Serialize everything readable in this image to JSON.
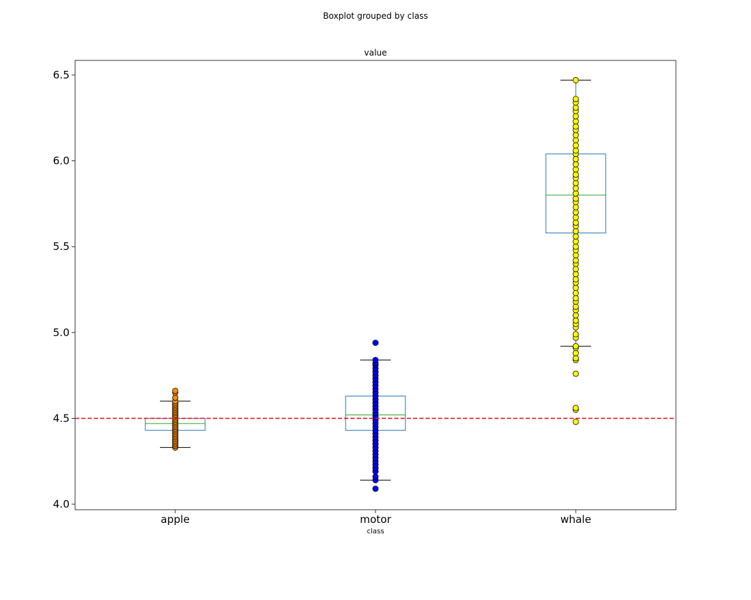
{
  "chart_data": {
    "type": "box",
    "title": "Boxplot grouped by class",
    "subtitle": "value",
    "xlabel": "class",
    "ylabel": "",
    "ylim": [
      3.96,
      6.58
    ],
    "yticks": [
      4.0,
      4.5,
      5.0,
      5.5,
      6.0,
      6.5
    ],
    "ytick_labels": [
      "4.0",
      "4.5",
      "5.0",
      "5.5",
      "6.0",
      "6.5"
    ],
    "categories": [
      "apple",
      "motor",
      "whale"
    ],
    "reference_line": {
      "y": 4.5,
      "color": "#e41a1c",
      "style": "dashed"
    },
    "box_color": "#1f77b4",
    "median_color": "#2ca02c",
    "series": [
      {
        "category": "apple",
        "point_color": "#ff8c00",
        "whisker_low": 4.33,
        "q1": 4.43,
        "median": 4.47,
        "q3": 4.5,
        "whisker_high": 4.6,
        "points": [
          4.33,
          4.34,
          4.35,
          4.36,
          4.37,
          4.38,
          4.39,
          4.4,
          4.41,
          4.42,
          4.43,
          4.44,
          4.45,
          4.46,
          4.47,
          4.48,
          4.49,
          4.5,
          4.51,
          4.52,
          4.53,
          4.54,
          4.55,
          4.56,
          4.57,
          4.58,
          4.59,
          4.6,
          4.62,
          4.65,
          4.66
        ]
      },
      {
        "category": "motor",
        "point_color": "#0000ff",
        "whisker_low": 4.14,
        "q1": 4.43,
        "median": 4.52,
        "q3": 4.63,
        "whisker_high": 4.84,
        "points": [
          4.09,
          4.14,
          4.16,
          4.19,
          4.21,
          4.23,
          4.25,
          4.27,
          4.29,
          4.31,
          4.33,
          4.35,
          4.37,
          4.39,
          4.41,
          4.43,
          4.45,
          4.47,
          4.49,
          4.51,
          4.53,
          4.55,
          4.57,
          4.59,
          4.61,
          4.63,
          4.65,
          4.67,
          4.69,
          4.71,
          4.73,
          4.75,
          4.77,
          4.79,
          4.81,
          4.82,
          4.84,
          4.94
        ]
      },
      {
        "category": "whale",
        "point_color": "#ffff00",
        "whisker_low": 4.92,
        "q1": 5.58,
        "median": 5.8,
        "q3": 6.04,
        "whisker_high": 6.47,
        "points": [
          4.48,
          4.55,
          4.56,
          4.76,
          4.84,
          4.85,
          4.88,
          4.91,
          4.92,
          4.97,
          4.99,
          5.03,
          5.05,
          5.07,
          5.1,
          5.13,
          5.15,
          5.18,
          5.2,
          5.23,
          5.26,
          5.29,
          5.31,
          5.34,
          5.37,
          5.4,
          5.42,
          5.45,
          5.48,
          5.5,
          5.53,
          5.56,
          5.59,
          5.62,
          5.64,
          5.67,
          5.7,
          5.73,
          5.76,
          5.78,
          5.81,
          5.84,
          5.87,
          5.9,
          5.92,
          5.95,
          5.98,
          6.01,
          6.04,
          6.06,
          6.09,
          6.12,
          6.15,
          6.18,
          6.2,
          6.23,
          6.26,
          6.29,
          6.31,
          6.34,
          6.36,
          6.47
        ]
      }
    ]
  }
}
